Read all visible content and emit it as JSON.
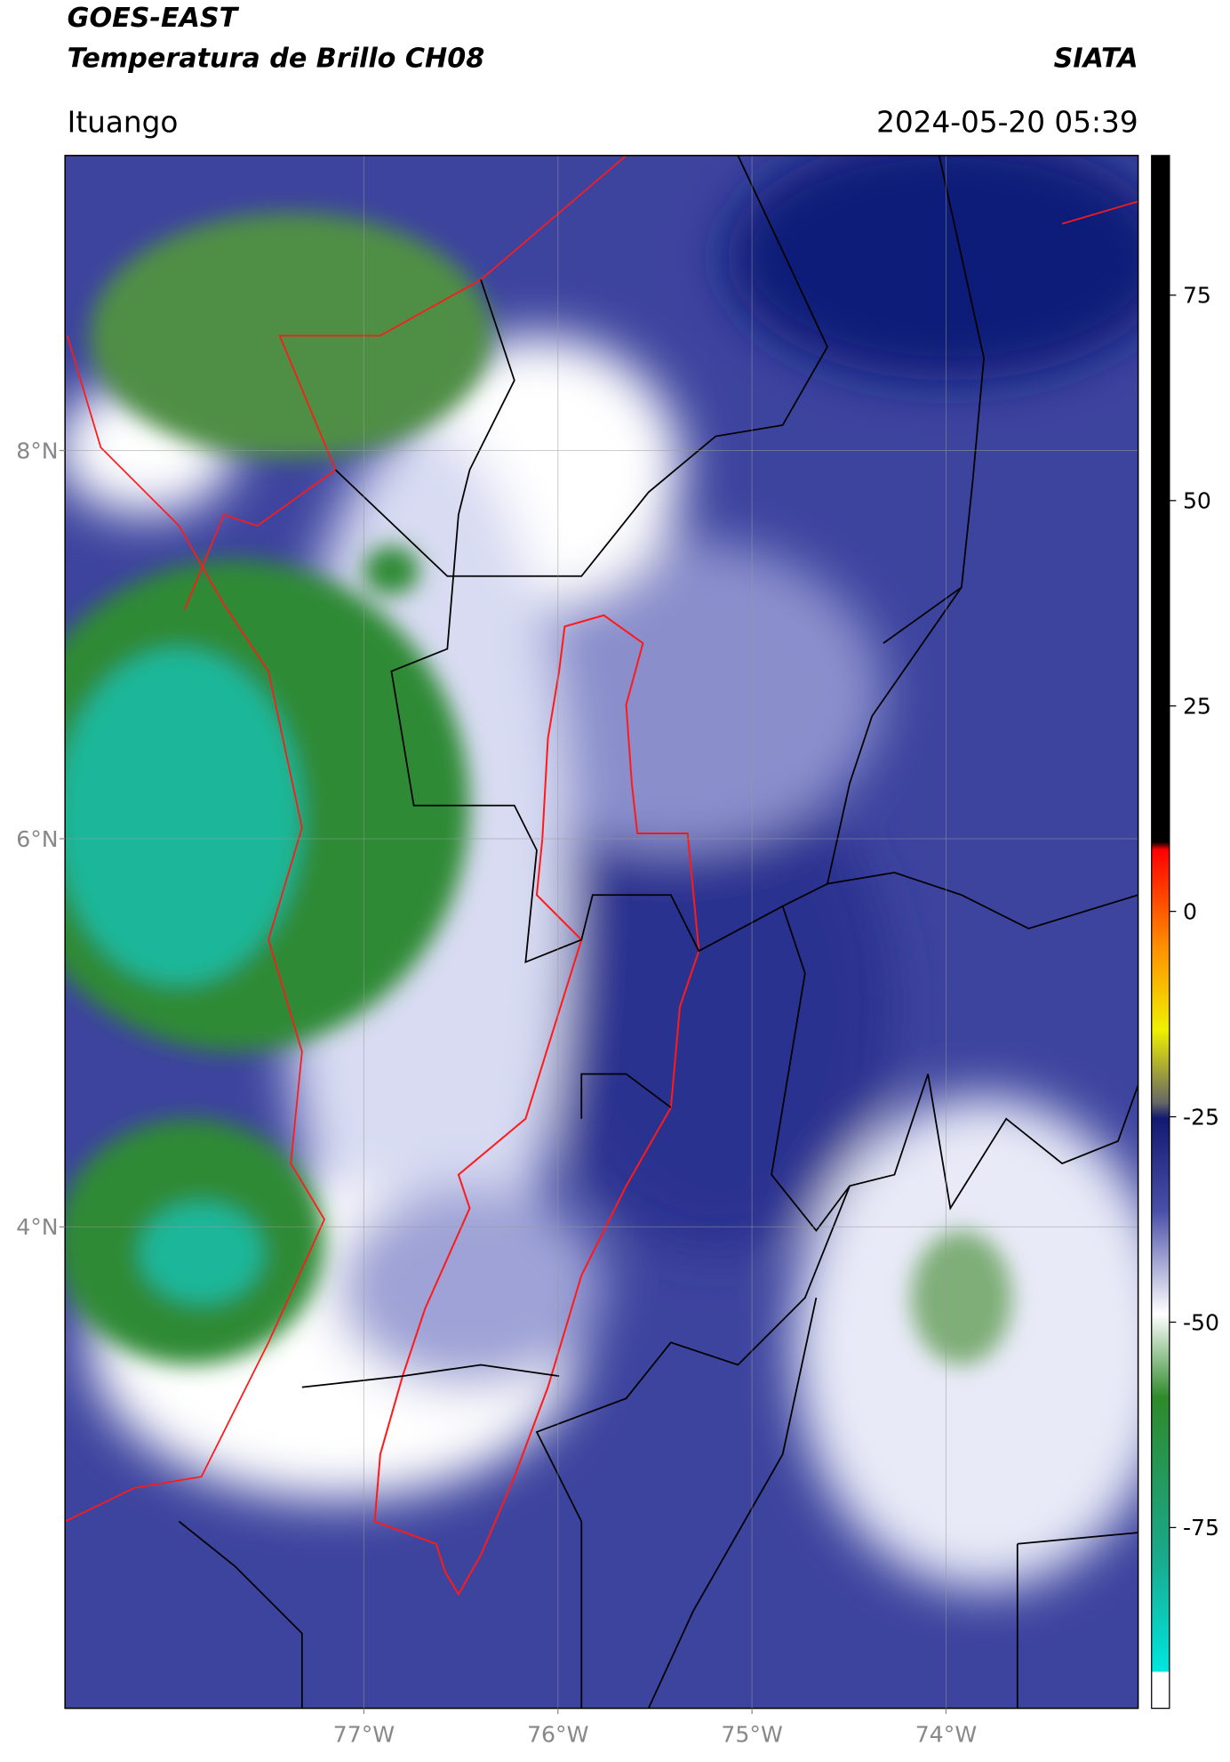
{
  "header": {
    "title_line1": "GOES-EAST",
    "title_line2": "Temperatura de Brillo CH08",
    "brand": "SIATA",
    "location": "Ituango",
    "datetime": "2024-05-20 05:39"
  },
  "map": {
    "xlim": [
      -78.54,
      -73.01
    ],
    "ylim": [
      1.52,
      9.52
    ],
    "xticks": [
      {
        "value": -77,
        "label": "77°W"
      },
      {
        "value": -76,
        "label": "76°W"
      },
      {
        "value": -75,
        "label": "75°W"
      },
      {
        "value": -74,
        "label": "74°W"
      }
    ],
    "yticks": [
      {
        "value": 8,
        "label": "8°N"
      },
      {
        "value": 6,
        "label": "6°N"
      },
      {
        "value": 4,
        "label": "4°N"
      }
    ],
    "grid": true
  },
  "colorbar": {
    "lim": [
      -97,
      92
    ],
    "ticks": [
      75,
      50,
      25,
      0,
      -25,
      -50,
      -75
    ]
  }
}
